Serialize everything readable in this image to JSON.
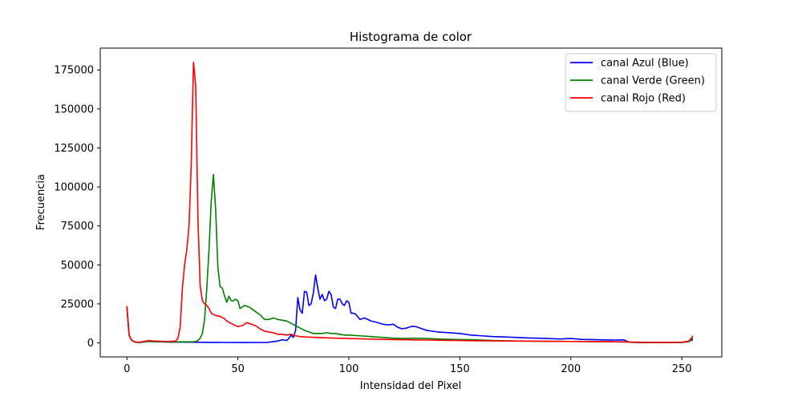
{
  "chart_data": {
    "type": "line",
    "title": "Histograma de color",
    "xlabel": "Intensidad del Pixel",
    "ylabel": "Frecuencia",
    "xlim": [
      -12,
      268
    ],
    "ylim": [
      -9000,
      189000
    ],
    "xticks": [
      0,
      50,
      100,
      150,
      200,
      250
    ],
    "yticks": [
      0,
      25000,
      50000,
      75000,
      100000,
      125000,
      150000,
      175000
    ],
    "grid": false,
    "legend_position": "top-right",
    "series": [
      {
        "name": "canal Azul (Blue)",
        "color": "#0000ff",
        "points": [
          [
            0,
            23000
          ],
          [
            1,
            5000
          ],
          [
            2,
            2000
          ],
          [
            3,
            900
          ],
          [
            4,
            400
          ],
          [
            5,
            300
          ],
          [
            6,
            300
          ],
          [
            8,
            600
          ],
          [
            10,
            900
          ],
          [
            12,
            800
          ],
          [
            15,
            700
          ],
          [
            20,
            500
          ],
          [
            25,
            500
          ],
          [
            30,
            400
          ],
          [
            35,
            350
          ],
          [
            40,
            300
          ],
          [
            45,
            250
          ],
          [
            50,
            200
          ],
          [
            55,
            200
          ],
          [
            60,
            250
          ],
          [
            63,
            300
          ],
          [
            65,
            600
          ],
          [
            68,
            1200
          ],
          [
            70,
            2000
          ],
          [
            72,
            1500
          ],
          [
            73,
            3000
          ],
          [
            74,
            5000
          ],
          [
            75,
            3500
          ],
          [
            76,
            8000
          ],
          [
            77,
            29000
          ],
          [
            78,
            21000
          ],
          [
            79,
            19000
          ],
          [
            80,
            33000
          ],
          [
            81,
            32500
          ],
          [
            82,
            24000
          ],
          [
            83,
            25000
          ],
          [
            84,
            32000
          ],
          [
            85,
            43500
          ],
          [
            86,
            35000
          ],
          [
            87,
            28000
          ],
          [
            88,
            31000
          ],
          [
            89,
            27000
          ],
          [
            90,
            28000
          ],
          [
            91,
            33000
          ],
          [
            92,
            31000
          ],
          [
            93,
            23000
          ],
          [
            94,
            22000
          ],
          [
            95,
            28000
          ],
          [
            96,
            28000
          ],
          [
            97,
            25000
          ],
          [
            98,
            24000
          ],
          [
            99,
            27000
          ],
          [
            100,
            26000
          ],
          [
            101,
            19000
          ],
          [
            102,
            19000
          ],
          [
            103,
            18500
          ],
          [
            105,
            15000
          ],
          [
            107,
            16000
          ],
          [
            110,
            14000
          ],
          [
            113,
            13000
          ],
          [
            115,
            12000
          ],
          [
            118,
            11500
          ],
          [
            120,
            12000
          ],
          [
            122,
            10000
          ],
          [
            124,
            9000
          ],
          [
            126,
            9500
          ],
          [
            128,
            10500
          ],
          [
            130,
            10500
          ],
          [
            132,
            9500
          ],
          [
            135,
            8000
          ],
          [
            140,
            7000
          ],
          [
            145,
            6500
          ],
          [
            150,
            6000
          ],
          [
            155,
            5000
          ],
          [
            160,
            4500
          ],
          [
            165,
            4000
          ],
          [
            170,
            3800
          ],
          [
            175,
            3500
          ],
          [
            180,
            3200
          ],
          [
            185,
            3000
          ],
          [
            190,
            2800
          ],
          [
            195,
            2500
          ],
          [
            200,
            2800
          ],
          [
            205,
            2200
          ],
          [
            210,
            2100
          ],
          [
            215,
            1900
          ],
          [
            220,
            1800
          ],
          [
            224,
            1900
          ],
          [
            225,
            1200
          ],
          [
            226,
            500
          ],
          [
            230,
            200
          ],
          [
            240,
            200
          ],
          [
            250,
            300
          ],
          [
            253,
            800
          ],
          [
            254,
            1500
          ],
          [
            255,
            2000
          ]
        ]
      },
      {
        "name": "canal Verde (Green)",
        "color": "#008000",
        "points": [
          [
            0,
            23500
          ],
          [
            1,
            5000
          ],
          [
            2,
            2000
          ],
          [
            3,
            900
          ],
          [
            4,
            400
          ],
          [
            6,
            300
          ],
          [
            8,
            700
          ],
          [
            10,
            900
          ],
          [
            15,
            700
          ],
          [
            20,
            600
          ],
          [
            25,
            700
          ],
          [
            28,
            700
          ],
          [
            30,
            700
          ],
          [
            31,
            900
          ],
          [
            32,
            1500
          ],
          [
            33,
            3000
          ],
          [
            34,
            6000
          ],
          [
            35,
            15000
          ],
          [
            36,
            35000
          ],
          [
            37,
            60000
          ],
          [
            38,
            91000
          ],
          [
            39,
            108000
          ],
          [
            40,
            85000
          ],
          [
            41,
            48000
          ],
          [
            42,
            36000
          ],
          [
            43,
            35000
          ],
          [
            44,
            30000
          ],
          [
            45,
            26000
          ],
          [
            46,
            30000
          ],
          [
            47,
            27000
          ],
          [
            48,
            27000
          ],
          [
            49,
            28000
          ],
          [
            50,
            27000
          ],
          [
            51,
            22000
          ],
          [
            52,
            23000
          ],
          [
            53,
            24000
          ],
          [
            55,
            23000
          ],
          [
            57,
            21000
          ],
          [
            60,
            18000
          ],
          [
            62,
            15000
          ],
          [
            64,
            15000
          ],
          [
            66,
            16000
          ],
          [
            68,
            15000
          ],
          [
            70,
            14500
          ],
          [
            72,
            14000
          ],
          [
            74,
            12500
          ],
          [
            76,
            11000
          ],
          [
            78,
            9500
          ],
          [
            80,
            8000
          ],
          [
            82,
            7000
          ],
          [
            84,
            6000
          ],
          [
            86,
            6000
          ],
          [
            88,
            6000
          ],
          [
            90,
            6500
          ],
          [
            92,
            6000
          ],
          [
            94,
            6000
          ],
          [
            96,
            5500
          ],
          [
            98,
            5000
          ],
          [
            100,
            5000
          ],
          [
            105,
            4500
          ],
          [
            110,
            4000
          ],
          [
            115,
            3500
          ],
          [
            120,
            3000
          ],
          [
            125,
            2800
          ],
          [
            130,
            3000
          ],
          [
            135,
            2800
          ],
          [
            140,
            2500
          ],
          [
            145,
            2300
          ],
          [
            150,
            2100
          ],
          [
            155,
            2000
          ],
          [
            160,
            1800
          ],
          [
            165,
            1500
          ],
          [
            170,
            1300
          ],
          [
            175,
            1200
          ],
          [
            180,
            1100
          ],
          [
            190,
            1000
          ],
          [
            200,
            900
          ],
          [
            210,
            800
          ],
          [
            220,
            700
          ],
          [
            225,
            500
          ],
          [
            230,
            300
          ],
          [
            240,
            200
          ],
          [
            250,
            300
          ],
          [
            253,
            700
          ],
          [
            254,
            1500
          ],
          [
            255,
            3000
          ]
        ]
      },
      {
        "name": "canal Rojo (Red)",
        "color": "#ff0000",
        "points": [
          [
            0,
            23500
          ],
          [
            1,
            5000
          ],
          [
            2,
            2000
          ],
          [
            3,
            1000
          ],
          [
            4,
            500
          ],
          [
            6,
            500
          ],
          [
            8,
            1000
          ],
          [
            10,
            1500
          ],
          [
            12,
            1200
          ],
          [
            15,
            1000
          ],
          [
            18,
            900
          ],
          [
            20,
            1000
          ],
          [
            22,
            1200
          ],
          [
            23,
            3000
          ],
          [
            24,
            10000
          ],
          [
            25,
            35000
          ],
          [
            26,
            50000
          ],
          [
            27,
            60000
          ],
          [
            28,
            75000
          ],
          [
            29,
            115000
          ],
          [
            30,
            180000
          ],
          [
            31,
            165000
          ],
          [
            32,
            80000
          ],
          [
            33,
            37000
          ],
          [
            34,
            27000
          ],
          [
            35,
            25000
          ],
          [
            36,
            24000
          ],
          [
            37,
            22000
          ],
          [
            38,
            19000
          ],
          [
            40,
            17500
          ],
          [
            42,
            17000
          ],
          [
            44,
            15500
          ],
          [
            45,
            14000
          ],
          [
            47,
            12500
          ],
          [
            49,
            11000
          ],
          [
            50,
            10500
          ],
          [
            52,
            11000
          ],
          [
            54,
            13000
          ],
          [
            56,
            12000
          ],
          [
            58,
            11000
          ],
          [
            60,
            9000
          ],
          [
            62,
            7500
          ],
          [
            64,
            7000
          ],
          [
            66,
            6500
          ],
          [
            68,
            5500
          ],
          [
            70,
            5500
          ],
          [
            72,
            5000
          ],
          [
            74,
            5500
          ],
          [
            76,
            4500
          ],
          [
            78,
            4000
          ],
          [
            80,
            3800
          ],
          [
            85,
            3500
          ],
          [
            90,
            3200
          ],
          [
            95,
            3000
          ],
          [
            100,
            2800
          ],
          [
            105,
            2600
          ],
          [
            110,
            2400
          ],
          [
            115,
            2200
          ],
          [
            120,
            2100
          ],
          [
            125,
            2000
          ],
          [
            130,
            1900
          ],
          [
            135,
            1800
          ],
          [
            140,
            1700
          ],
          [
            145,
            1600
          ],
          [
            150,
            1500
          ],
          [
            155,
            1400
          ],
          [
            160,
            1300
          ],
          [
            170,
            1200
          ],
          [
            180,
            1100
          ],
          [
            190,
            1000
          ],
          [
            200,
            900
          ],
          [
            210,
            800
          ],
          [
            220,
            700
          ],
          [
            225,
            600
          ],
          [
            230,
            400
          ],
          [
            240,
            300
          ],
          [
            250,
            400
          ],
          [
            253,
            1000
          ],
          [
            254,
            2500
          ],
          [
            255,
            4500
          ]
        ]
      }
    ]
  }
}
